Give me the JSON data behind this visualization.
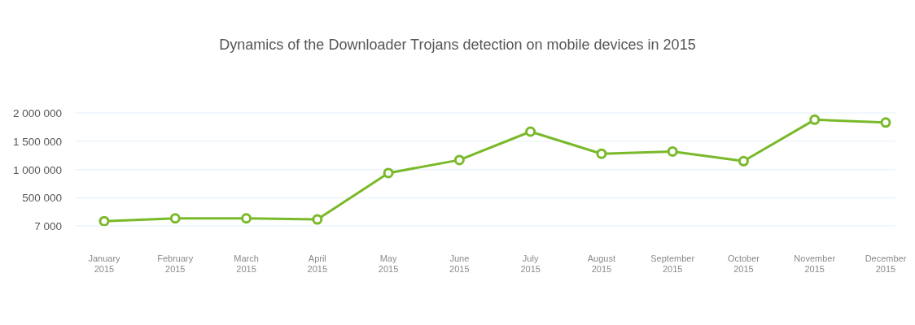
{
  "chart_data": {
    "type": "line",
    "title": "Dynamics of the Downloader Trojans detection on mobile devices in 2015",
    "categories": [
      "January 2015",
      "February 2015",
      "March 2015",
      "April 2015",
      "May 2015",
      "June 2015",
      "July 2015",
      "August 2015",
      "September 2015",
      "October 2015",
      "November 2015",
      "December 2015"
    ],
    "series": [
      {
        "color": "#7ab929",
        "values": [
          90000,
          140000,
          140000,
          120000,
          940000,
          1170000,
          1670000,
          1280000,
          1320000,
          1150000,
          1880000,
          1830000
        ]
      }
    ],
    "ylim": [
      7000,
      2000000
    ],
    "yticks": [
      {
        "value": 7000,
        "label": "7 000"
      },
      {
        "value": 500000,
        "label": "500 000"
      },
      {
        "value": 1000000,
        "label": "1 000 000"
      },
      {
        "value": 1500000,
        "label": "1 500 000"
      },
      {
        "value": 2000000,
        "label": "2 000 000"
      }
    ],
    "grid": "y",
    "marker": "circle",
    "line_style": "solid"
  }
}
